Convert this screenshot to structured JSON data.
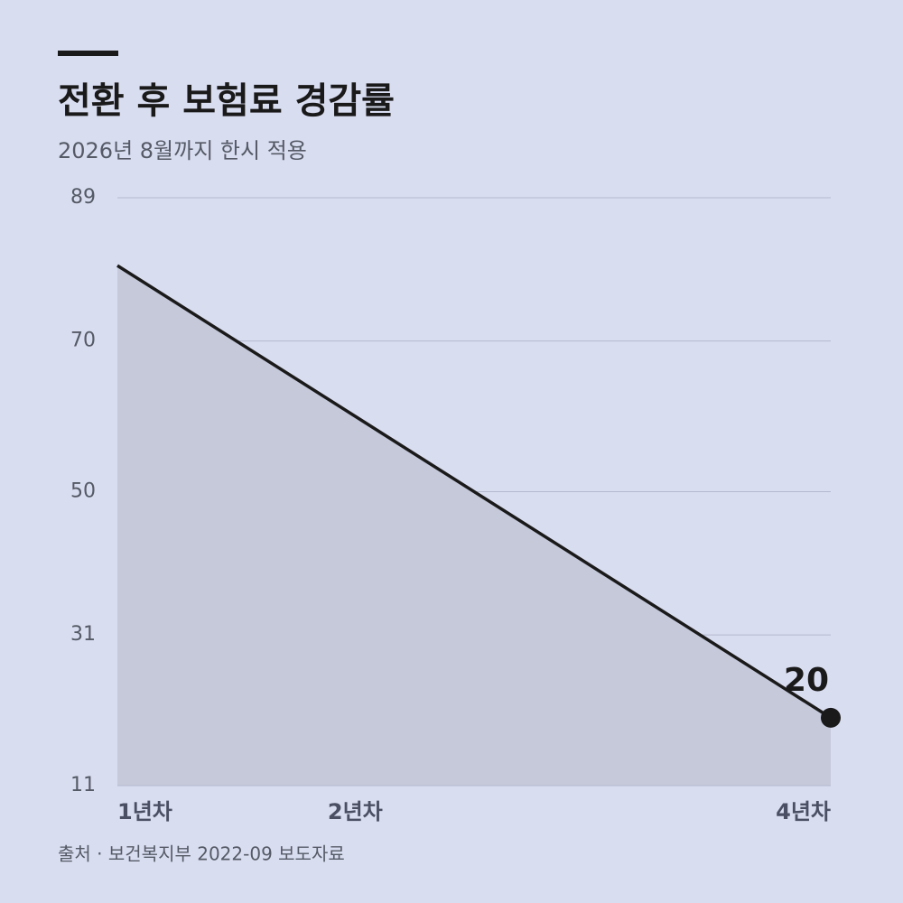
{
  "chart_data": {
    "type": "area",
    "title": "전환 후 보험료 경감률",
    "subtitle": "2026년 8월까지 한시 적용",
    "source": "출처 · 보건복지부 2022-09 보도자료",
    "x": [
      1,
      2,
      4
    ],
    "values": [
      80,
      60,
      20
    ],
    "xlim": [
      1,
      4
    ],
    "xticks": [
      {
        "value": 1,
        "label": "1년차"
      },
      {
        "value": 2,
        "label": "2년차"
      },
      {
        "value": 4,
        "label": "4년차"
      }
    ],
    "ylim": [
      11,
      89
    ],
    "yticks": [
      89,
      70,
      50,
      31,
      11
    ],
    "grid": true,
    "color": "#1a1a1a",
    "fill_color": "#c5c9da"
  }
}
